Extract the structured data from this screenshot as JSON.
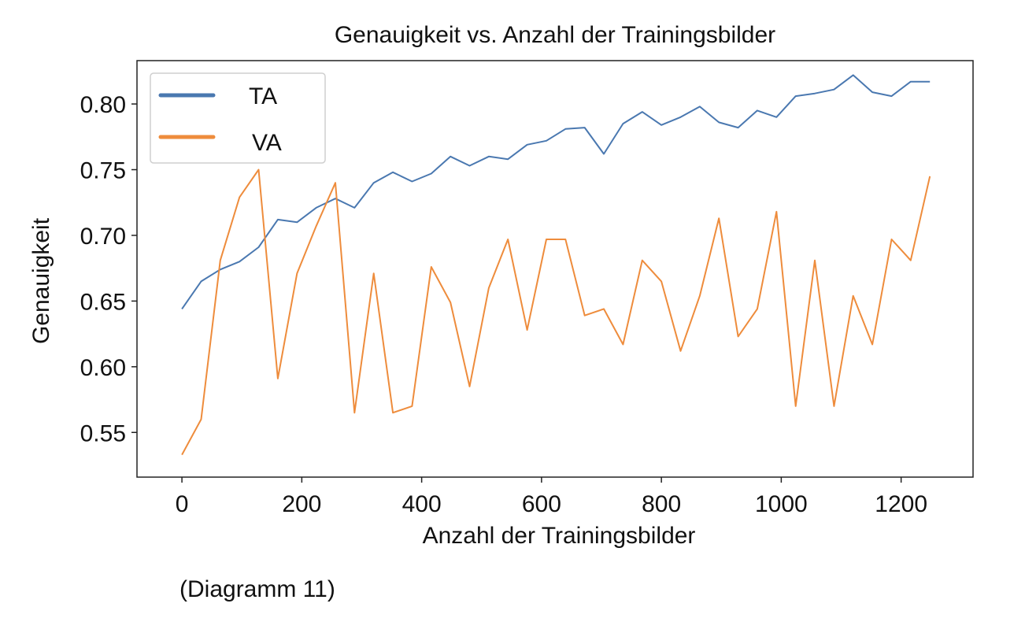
{
  "chart_data": {
    "type": "line",
    "title": "Genauigkeit vs. Anzahl der Trainingsbilder",
    "xlabel": "Anzahl der Trainingsbilder",
    "ylabel": "Genauigkeit",
    "xlim": [
      -75,
      1320
    ],
    "ylim": [
      0.516,
      0.833
    ],
    "xticks": [
      0,
      200,
      400,
      600,
      800,
      1000,
      1200
    ],
    "yticks": [
      0.55,
      0.6,
      0.65,
      0.7,
      0.75,
      0.8
    ],
    "ytick_labels": [
      "0.55",
      "0.60",
      "0.65",
      "0.70",
      "0.75",
      "0.80"
    ],
    "grid": false,
    "legend_position": "top-left",
    "x": [
      0,
      32,
      64,
      96,
      128,
      160,
      192,
      224,
      256,
      288,
      320,
      352,
      384,
      416,
      448,
      480,
      512,
      544,
      576,
      608,
      640,
      672,
      704,
      736,
      768,
      800,
      832,
      864,
      896,
      928,
      960,
      992,
      1024,
      1056,
      1088,
      1120,
      1152,
      1184,
      1216,
      1248
    ],
    "series": [
      {
        "name": "TA",
        "color": "#4a78b0",
        "values": [
          0.644,
          0.665,
          0.674,
          0.68,
          0.691,
          0.712,
          0.71,
          0.721,
          0.728,
          0.721,
          0.74,
          0.748,
          0.741,
          0.747,
          0.76,
          0.753,
          0.76,
          0.758,
          0.769,
          0.772,
          0.781,
          0.782,
          0.762,
          0.785,
          0.794,
          0.784,
          0.79,
          0.798,
          0.786,
          0.782,
          0.795,
          0.79,
          0.806,
          0.808,
          0.811,
          0.822,
          0.809,
          0.806,
          0.817,
          0.817
        ]
      },
      {
        "name": "VA",
        "color": "#ee8c3c",
        "values": [
          0.533,
          0.56,
          0.681,
          0.729,
          0.75,
          0.591,
          0.671,
          0.707,
          0.74,
          0.565,
          0.671,
          0.565,
          0.57,
          0.676,
          0.649,
          0.585,
          0.66,
          0.697,
          0.628,
          0.697,
          0.697,
          0.639,
          0.644,
          0.617,
          0.681,
          0.665,
          0.612,
          0.654,
          0.713,
          0.623,
          0.644,
          0.718,
          0.57,
          0.681,
          0.57,
          0.654,
          0.617,
          0.697,
          0.681,
          0.745
        ]
      }
    ]
  },
  "caption": "(Diagramm 11)"
}
